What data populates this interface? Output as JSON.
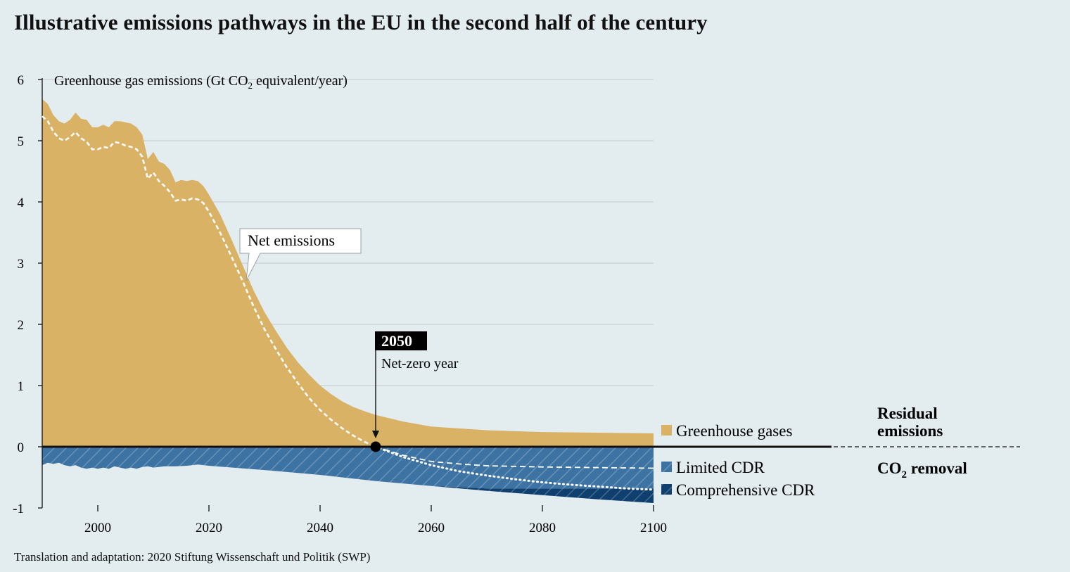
{
  "title": "Illustrative emissions pathways in the EU in the second half of the century",
  "footer": "Translation and adaptation: 2020 Stiftung Wissenschaft und Politik (SWP)",
  "chart_data": {
    "type": "area",
    "ylabel_parts": [
      "Greenhouse gas emissions (Gt CO",
      "2",
      " equivalent/year)"
    ],
    "xlim": [
      1990,
      2100
    ],
    "ylim": [
      -1,
      6
    ],
    "x_ticks": [
      2000,
      2020,
      2040,
      2060,
      2080,
      2100
    ],
    "y_ticks": [
      -1,
      0,
      1,
      2,
      3,
      4,
      5,
      6
    ],
    "grid": true,
    "series": [
      {
        "name": "Greenhouse gases",
        "color": "#d9b266",
        "points": [
          [
            1990,
            5.68
          ],
          [
            1991,
            5.6
          ],
          [
            1992,
            5.42
          ],
          [
            1993,
            5.32
          ],
          [
            1994,
            5.28
          ],
          [
            1995,
            5.34
          ],
          [
            1996,
            5.46
          ],
          [
            1997,
            5.36
          ],
          [
            1998,
            5.34
          ],
          [
            1999,
            5.22
          ],
          [
            2000,
            5.22
          ],
          [
            2001,
            5.26
          ],
          [
            2002,
            5.22
          ],
          [
            2003,
            5.32
          ],
          [
            2004,
            5.32
          ],
          [
            2005,
            5.3
          ],
          [
            2006,
            5.28
          ],
          [
            2007,
            5.22
          ],
          [
            2008,
            5.1
          ],
          [
            2009,
            4.7
          ],
          [
            2010,
            4.82
          ],
          [
            2011,
            4.66
          ],
          [
            2012,
            4.62
          ],
          [
            2013,
            4.52
          ],
          [
            2014,
            4.32
          ],
          [
            2015,
            4.36
          ],
          [
            2016,
            4.34
          ],
          [
            2017,
            4.36
          ],
          [
            2018,
            4.34
          ],
          [
            2019,
            4.26
          ],
          [
            2020,
            4.12
          ],
          [
            2022,
            3.8
          ],
          [
            2024,
            3.4
          ],
          [
            2026,
            2.98
          ],
          [
            2028,
            2.56
          ],
          [
            2030,
            2.2
          ],
          [
            2032,
            1.9
          ],
          [
            2034,
            1.62
          ],
          [
            2036,
            1.38
          ],
          [
            2038,
            1.18
          ],
          [
            2040,
            1.0
          ],
          [
            2042,
            0.86
          ],
          [
            2044,
            0.74
          ],
          [
            2046,
            0.65
          ],
          [
            2048,
            0.58
          ],
          [
            2050,
            0.52
          ],
          [
            2055,
            0.41
          ],
          [
            2060,
            0.33
          ],
          [
            2070,
            0.27
          ],
          [
            2080,
            0.24
          ],
          [
            2090,
            0.23
          ],
          [
            2100,
            0.22
          ]
        ]
      },
      {
        "name": "Net emissions",
        "points": [
          [
            1990,
            5.4
          ],
          [
            1991,
            5.32
          ],
          [
            1992,
            5.15
          ],
          [
            1993,
            5.04
          ],
          [
            1994,
            5.0
          ],
          [
            1995,
            5.06
          ],
          [
            1996,
            5.14
          ],
          [
            1997,
            5.04
          ],
          [
            1998,
            4.98
          ],
          [
            1999,
            4.86
          ],
          [
            2000,
            4.86
          ],
          [
            2001,
            4.9
          ],
          [
            2002,
            4.88
          ],
          [
            2003,
            4.98
          ],
          [
            2004,
            4.96
          ],
          [
            2005,
            4.92
          ],
          [
            2006,
            4.9
          ],
          [
            2007,
            4.86
          ],
          [
            2008,
            4.74
          ],
          [
            2009,
            4.38
          ],
          [
            2010,
            4.48
          ],
          [
            2011,
            4.34
          ],
          [
            2012,
            4.26
          ],
          [
            2013,
            4.16
          ],
          [
            2014,
            4.02
          ],
          [
            2015,
            4.04
          ],
          [
            2016,
            4.02
          ],
          [
            2017,
            4.06
          ],
          [
            2018,
            4.04
          ],
          [
            2019,
            3.98
          ],
          [
            2020,
            3.84
          ],
          [
            2022,
            3.5
          ],
          [
            2024,
            3.12
          ],
          [
            2026,
            2.72
          ],
          [
            2028,
            2.3
          ],
          [
            2030,
            1.92
          ],
          [
            2032,
            1.6
          ],
          [
            2034,
            1.3
          ],
          [
            2036,
            1.04
          ],
          [
            2038,
            0.8
          ],
          [
            2040,
            0.6
          ],
          [
            2042,
            0.44
          ],
          [
            2044,
            0.3
          ],
          [
            2046,
            0.18
          ],
          [
            2048,
            0.08
          ],
          [
            2050,
            0.0
          ]
        ]
      },
      {
        "name": "Limited CDR",
        "color": "#3d73a3",
        "points": [
          [
            1990,
            -0.3
          ],
          [
            1991,
            -0.26
          ],
          [
            1992,
            -0.28
          ],
          [
            1993,
            -0.26
          ],
          [
            1994,
            -0.3
          ],
          [
            1995,
            -0.32
          ],
          [
            1996,
            -0.3
          ],
          [
            1997,
            -0.34
          ],
          [
            1998,
            -0.36
          ],
          [
            1999,
            -0.34
          ],
          [
            2000,
            -0.36
          ],
          [
            2001,
            -0.34
          ],
          [
            2002,
            -0.36
          ],
          [
            2003,
            -0.32
          ],
          [
            2004,
            -0.34
          ],
          [
            2005,
            -0.36
          ],
          [
            2006,
            -0.34
          ],
          [
            2007,
            -0.36
          ],
          [
            2008,
            -0.33
          ],
          [
            2009,
            -0.32
          ],
          [
            2010,
            -0.34
          ],
          [
            2012,
            -0.32
          ],
          [
            2014,
            -0.32
          ],
          [
            2016,
            -0.31
          ],
          [
            2018,
            -0.29
          ],
          [
            2020,
            -0.31
          ],
          [
            2030,
            -0.38
          ],
          [
            2040,
            -0.46
          ],
          [
            2050,
            -0.56
          ],
          [
            2060,
            -0.64
          ],
          [
            2070,
            -0.68
          ],
          [
            2080,
            -0.68
          ],
          [
            2090,
            -0.68
          ],
          [
            2100,
            -0.68
          ]
        ],
        "net_points": [
          [
            2050,
            0.0
          ],
          [
            2055,
            -0.14
          ],
          [
            2060,
            -0.24
          ],
          [
            2065,
            -0.28
          ],
          [
            2070,
            -0.31
          ],
          [
            2080,
            -0.33
          ],
          [
            2090,
            -0.34
          ],
          [
            2100,
            -0.35
          ]
        ]
      },
      {
        "name": "Comprehensive CDR",
        "color": "#0f3f6e",
        "points": [
          [
            2050,
            -0.56
          ],
          [
            2060,
            -0.64
          ],
          [
            2070,
            -0.72
          ],
          [
            2080,
            -0.79
          ],
          [
            2090,
            -0.86
          ],
          [
            2100,
            -0.92
          ]
        ],
        "net_points": [
          [
            2050,
            0.0
          ],
          [
            2055,
            -0.17
          ],
          [
            2060,
            -0.3
          ],
          [
            2065,
            -0.4
          ],
          [
            2070,
            -0.47
          ],
          [
            2075,
            -0.53
          ],
          [
            2080,
            -0.58
          ],
          [
            2085,
            -0.62
          ],
          [
            2090,
            -0.65
          ],
          [
            2095,
            -0.68
          ],
          [
            2100,
            -0.7
          ]
        ]
      }
    ],
    "annotations": {
      "net_emissions_label": "Net emissions",
      "net_zero_year": "2050",
      "net_zero_label": "Net-zero year",
      "residual_label_line1": "Residual",
      "residual_label_line2": "emissions",
      "removal_label_parts": [
        "CO",
        "2",
        " removal"
      ]
    },
    "legend_placement": "right"
  }
}
